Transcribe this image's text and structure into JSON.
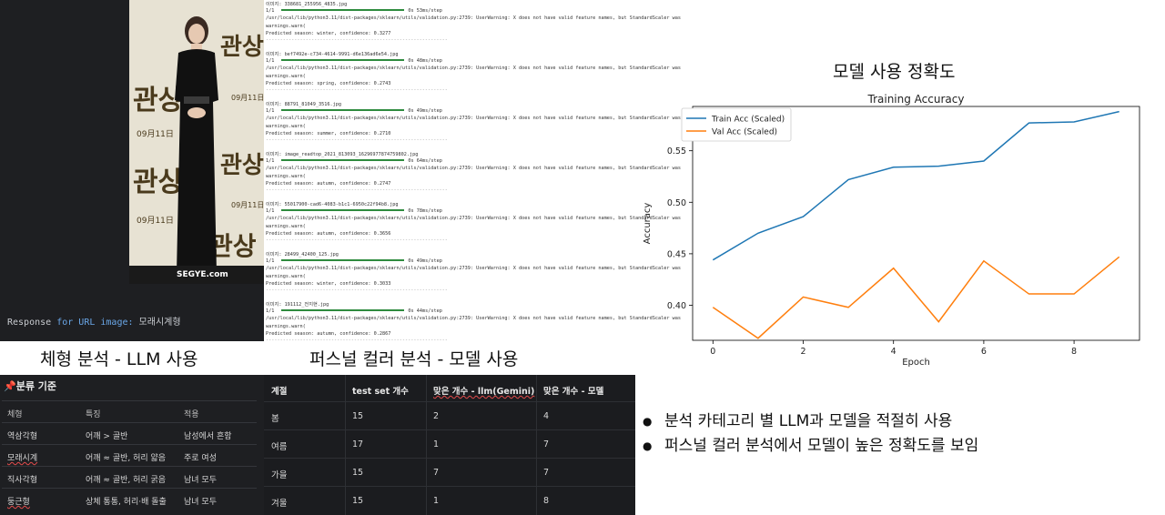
{
  "left_panel": {
    "poster": {
      "title": "관상",
      "date": "09月11日",
      "watermark": "SEGYE.com"
    },
    "response": {
      "label": "Response",
      "for_word": "for",
      "url_image": "URL image:",
      "value": "모래시계형"
    }
  },
  "log": {
    "blocks": [
      {
        "image": "이미지: 338681_255956_4835.jpg",
        "step": "1/1",
        "timing": "0s 53ms/step",
        "warn": "/usr/local/lib/python3.11/dist-packages/sklearn/utils/validation.py:2739: UserWarning: X does not have valid feature names, but StandardScaler was",
        "warn2": "  warnings.warn(",
        "pred": "Predicted season: winter, confidence: 0.3277"
      },
      {
        "image": "이미지: bef7492e-c734-4614-9991-d6e136ad6e54.jpg",
        "step": "1/1",
        "timing": "0s 48ms/step",
        "warn": "/usr/local/lib/python3.11/dist-packages/sklearn/utils/validation.py:2739: UserWarning: X does not have valid feature names, but StandardScaler was",
        "warn2": "  warnings.warn(",
        "pred": "Predicted season: spring, confidence: 0.2743"
      },
      {
        "image": "이미지: 88791_81049_3516.jpg",
        "step": "1/1",
        "timing": "0s 49ms/step",
        "warn": "/usr/local/lib/python3.11/dist-packages/sklearn/utils/validation.py:2739: UserWarning: X does not have valid feature names, but StandardScaler was",
        "warn2": "  warnings.warn(",
        "pred": "Predicted season: summer, confidence: 0.2710"
      },
      {
        "image": "이미지: image_readtop_2021_813093_16296977874759802.jpg",
        "step": "1/1",
        "timing": "0s 64ms/step",
        "warn": "/usr/local/lib/python3.11/dist-packages/sklearn/utils/validation.py:2739: UserWarning: X does not have valid feature names, but StandardScaler was",
        "warn2": "  warnings.warn(",
        "pred": "Predicted season: autumn, confidence: 0.2747"
      },
      {
        "image": "이미지: 55017900-cad6-4083-b1c1-6950c22f94b8.jpg",
        "step": "1/1",
        "timing": "0s 78ms/step",
        "warn": "/usr/local/lib/python3.11/dist-packages/sklearn/utils/validation.py:2739: UserWarning: X does not have valid feature names, but StandardScaler was",
        "warn2": "  warnings.warn(",
        "pred": "Predicted season: autumn, confidence: 0.3656"
      },
      {
        "image": "이미지: 28499_42400_125.jpg",
        "step": "1/1",
        "timing": "0s 49ms/step",
        "warn": "/usr/local/lib/python3.11/dist-packages/sklearn/utils/validation.py:2739: UserWarning: X does not have valid feature names, but StandardScaler was",
        "warn2": "  warnings.warn(",
        "pred": "Predicted season: winter, confidence: 0.3033"
      },
      {
        "image": "이미지: 191112_전지현.jpg",
        "step": "1/1",
        "timing": "0s 44ms/step",
        "warn": "/usr/local/lib/python3.11/dist-packages/sklearn/utils/validation.py:2739: UserWarning: X does not have valid feature names, but StandardScaler was",
        "warn2": "  warnings.warn(",
        "pred": "Predicted season: autumn, confidence: 0.2867"
      }
    ],
    "separator": "----------------------------------------------------------------"
  },
  "titles": {
    "body_analysis": "체형 분석 - LLM 사용",
    "personal_color": "퍼스널 컬러 분석 - 모델 사용",
    "model_accuracy": "모델 사용 정확도"
  },
  "body_table": {
    "heading": "분류 기준",
    "headers": [
      "체형",
      "특징",
      "적용"
    ],
    "rows": [
      [
        "역삼각형",
        "어깨 > 골반",
        "남성에서 흔함"
      ],
      [
        "모래시계",
        "어깨 ≈ 골반, 허리 얇음",
        "주로 여성"
      ],
      [
        "직사각형",
        "어깨 ≈ 골반, 허리 굵음",
        "남녀 모두"
      ],
      [
        "둥근형",
        "상체 통통, 허리·배 돌출",
        "남녀 모두"
      ]
    ]
  },
  "pc_table": {
    "headers": [
      "계절",
      "test set 개수",
      "맞은 개수 - llm(Gemini)",
      "맞은 개수 - 모델"
    ],
    "rows": [
      [
        "봄",
        "15",
        "2",
        "4"
      ],
      [
        "여름",
        "17",
        "1",
        "7"
      ],
      [
        "가을",
        "15",
        "7",
        "7"
      ],
      [
        "겨울",
        "15",
        "1",
        "8"
      ]
    ]
  },
  "chart_data": {
    "type": "line",
    "title": "Training Accuracy",
    "xlabel": "Epoch",
    "ylabel": "Accuracy",
    "x": [
      0,
      1,
      2,
      3,
      4,
      5,
      6,
      7,
      8,
      9
    ],
    "xticks": [
      "0",
      "2",
      "4",
      "6",
      "8"
    ],
    "yticks": [
      "0.40",
      "0.45",
      "0.50",
      "0.55"
    ],
    "xlim": [
      -0.45,
      9.45
    ],
    "ylim": [
      0.366,
      0.593
    ],
    "legend": "top-left",
    "grid": false,
    "series": [
      {
        "name": "Train Acc (Scaled)",
        "color": "#1f77b4",
        "values": [
          0.444,
          0.47,
          0.486,
          0.522,
          0.534,
          0.535,
          0.54,
          0.577,
          0.578,
          0.588
        ]
      },
      {
        "name": "Val Acc (Scaled)",
        "color": "#ff7f0e",
        "values": [
          0.398,
          0.368,
          0.408,
          0.398,
          0.436,
          0.384,
          0.443,
          0.411,
          0.411,
          0.447
        ]
      }
    ]
  },
  "bullets": [
    "분석 카테고리 별  LLM과 모델을 적절히 사용",
    "퍼스널 컬러 분석에서 모델이 높은 정확도를 보임"
  ]
}
